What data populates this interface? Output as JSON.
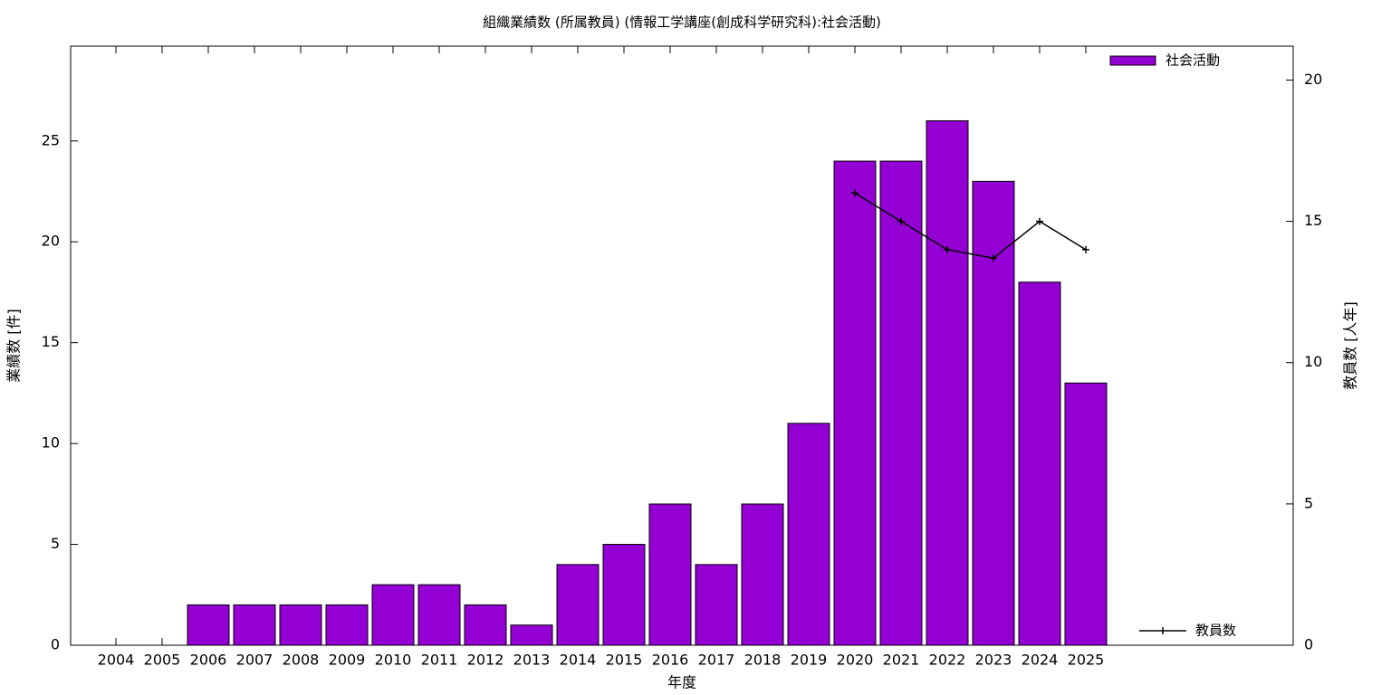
{
  "chart_data": {
    "type": "bar",
    "title": "組織業績数 (所属教員) (情報工学講座(創成科学研究科):社会活動)",
    "x_label": "年度",
    "y_label": "業績数 [件]",
    "y2_label": "教員数 [人年]",
    "categories": [
      "2004",
      "2005",
      "2006",
      "2007",
      "2008",
      "2009",
      "2010",
      "2011",
      "2012",
      "2013",
      "2014",
      "2015",
      "2016",
      "2017",
      "2018",
      "2019",
      "2020",
      "2021",
      "2022",
      "2023",
      "2024",
      "2025"
    ],
    "series": [
      {
        "name": "社会活動",
        "type": "bar",
        "color": "#9400d3",
        "values": [
          0,
          0,
          2,
          2,
          2,
          2,
          3,
          3,
          2,
          1,
          4,
          5,
          7,
          4,
          7,
          11,
          24,
          24,
          26,
          23,
          18,
          13
        ]
      },
      {
        "name": "教員数",
        "type": "line",
        "axis": "y2",
        "color": "#000000",
        "values": [
          null,
          null,
          null,
          null,
          null,
          null,
          null,
          null,
          null,
          null,
          null,
          null,
          null,
          null,
          null,
          null,
          16,
          15,
          14,
          13.7,
          15,
          14
        ]
      }
    ],
    "ylim": [
      0,
      29.7
    ],
    "yticks": [
      0,
      5,
      10,
      15,
      20,
      25
    ],
    "y2lim": [
      0,
      21.2
    ],
    "y2ticks": [
      0,
      5,
      10,
      15,
      20
    ]
  }
}
